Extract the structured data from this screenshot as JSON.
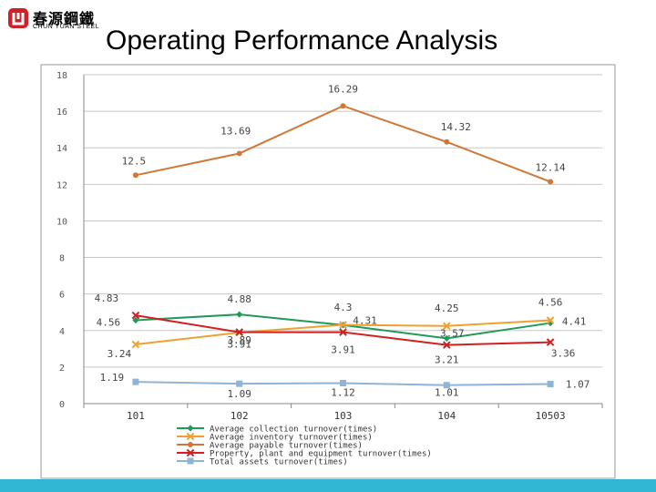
{
  "logo": {
    "name_cn": "春源鋼鐵",
    "name_en": "CHUN YUAN STEEL"
  },
  "title": "Operating Performance Analysis",
  "colors": {
    "accent_bar": "#31b6d3",
    "grid": "#c8c8c8"
  },
  "chart_data": {
    "type": "line",
    "categories": [
      "101",
      "102",
      "103",
      "104",
      "10503"
    ],
    "ylim": [
      0,
      18
    ],
    "yticks": [
      0,
      2,
      4,
      6,
      8,
      10,
      12,
      14,
      16,
      18
    ],
    "ytick_labels": [
      "0",
      "2",
      "4",
      "6",
      "8",
      "10",
      "12",
      "14",
      "16",
      "18"
    ],
    "series": [
      {
        "name": "Average collection turnover(times)",
        "color": "#1f9a5a",
        "marker": "diamond",
        "values": [
          4.56,
          4.88,
          4.3,
          3.57,
          4.41
        ],
        "labels": [
          "4.56",
          "4.88",
          "4.3",
          "3.57",
          "4.41"
        ]
      },
      {
        "name": "Average inventory turnover(times)",
        "color": "#f0a030",
        "marker": "x",
        "values": [
          3.24,
          3.89,
          4.31,
          4.25,
          4.56
        ],
        "labels": [
          "3.24",
          "3.89",
          "4.31",
          "4.25",
          "4.56"
        ]
      },
      {
        "name": "Average payable turnover(times)",
        "color": "#d07838",
        "marker": "circle",
        "values": [
          12.5,
          13.69,
          16.29,
          14.32,
          12.14
        ],
        "labels": [
          "12.5",
          "13.69",
          "16.29",
          "14.32",
          "12.14"
        ]
      },
      {
        "name": "Property, plant and equipment turnover(times)",
        "color": "#d02020",
        "marker": "x",
        "values": [
          4.83,
          3.91,
          3.91,
          3.21,
          3.36
        ],
        "labels": [
          "4.83",
          "3.91",
          "3.91",
          "3.21",
          "3.36"
        ]
      },
      {
        "name": "Total assets turnover(times)",
        "color": "#8eb4d8",
        "marker": "square",
        "values": [
          1.19,
          1.09,
          1.12,
          1.01,
          1.07
        ],
        "labels": [
          "1.19",
          "1.09",
          "1.12",
          "1.01",
          "1.07"
        ]
      }
    ],
    "grid": true,
    "legend": "bottom-center"
  }
}
